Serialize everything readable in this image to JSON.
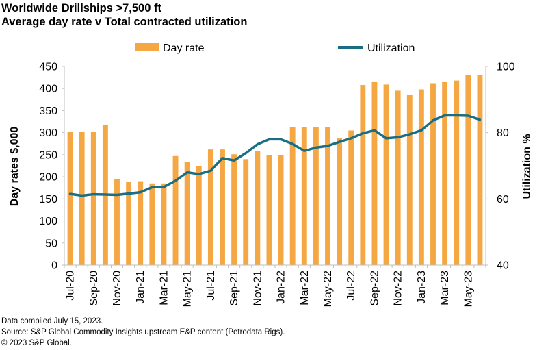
{
  "header": {
    "title": "Worldwide Drillships >7,500 ft",
    "subtitle": "Average day rate v Total contracted utilization"
  },
  "footer": {
    "line1": "Data compiled July 15, 2023.",
    "line2": "Source: S&P Global Commodity Insights upstream E&P content (Petrodata Rigs).",
    "line3": "© 2023 S&P Global."
  },
  "colors": {
    "bar": "#F4A742",
    "line": "#1A6E83",
    "axis": "#BFBFBF"
  },
  "chart_data": {
    "type": "bar",
    "title": "Worldwide Drillships >7,500 ft",
    "subtitle": "Average day rate v Total contracted utilization",
    "ylabel": "Day rates $,000",
    "y2label": "Utilization %",
    "ylim": [
      0,
      450
    ],
    "y2lim": [
      40,
      100
    ],
    "yticks": [
      "0",
      "50",
      "100",
      "150",
      "200",
      "250",
      "300",
      "350",
      "400",
      "450"
    ],
    "y2ticks": [
      "40",
      "60",
      "80",
      "100"
    ],
    "legend_position": "top",
    "grid": false,
    "x_tick_labels": [
      "Jul-20",
      "Sep-20",
      "Nov-20",
      "Jan-21",
      "Mar-21",
      "May-21",
      "Jul-21",
      "Sep-21",
      "Nov-21",
      "Jan-22",
      "Mar-22",
      "May-22",
      "Jul-22",
      "Sep-22",
      "Nov-22",
      "Jan-23",
      "Mar-23",
      "May-23"
    ],
    "categories": [
      "Jul-20",
      "Aug-20",
      "Sep-20",
      "Oct-20",
      "Nov-20",
      "Dec-20",
      "Jan-21",
      "Feb-21",
      "Mar-21",
      "Apr-21",
      "May-21",
      "Jun-21",
      "Jul-21",
      "Aug-21",
      "Sep-21",
      "Oct-21",
      "Nov-21",
      "Dec-21",
      "Jan-22",
      "Feb-22",
      "Mar-22",
      "Apr-22",
      "May-22",
      "Jun-22",
      "Jul-22",
      "Aug-22",
      "Sep-22",
      "Oct-22",
      "Nov-22",
      "Dec-22",
      "Jan-23",
      "Feb-23",
      "Mar-23",
      "Apr-23",
      "May-23",
      "Jun-23"
    ],
    "series": [
      {
        "name": "Day rate",
        "type": "bar",
        "axis": "left",
        "values": [
          302,
          302,
          302,
          318,
          195,
          189,
          190,
          185,
          185,
          247,
          234,
          224,
          262,
          262,
          251,
          240,
          258,
          249,
          249,
          313,
          313,
          313,
          313,
          287,
          305,
          408,
          416,
          409,
          395,
          385,
          398,
          412,
          416,
          418,
          430,
          430
        ]
      },
      {
        "name": "Utilization",
        "type": "line",
        "axis": "right",
        "values": [
          61.5,
          61.0,
          61.4,
          61.3,
          61.2,
          61.6,
          62.0,
          63.5,
          63.6,
          65.5,
          68.0,
          67.5,
          68.5,
          72.3,
          71.6,
          73.8,
          76.5,
          78.0,
          78.0,
          76.6,
          74.5,
          75.5,
          76.0,
          77.2,
          78.3,
          79.8,
          80.7,
          78.3,
          78.6,
          79.5,
          80.7,
          83.7,
          85.2,
          85.2,
          85.1,
          83.9
        ]
      }
    ]
  }
}
